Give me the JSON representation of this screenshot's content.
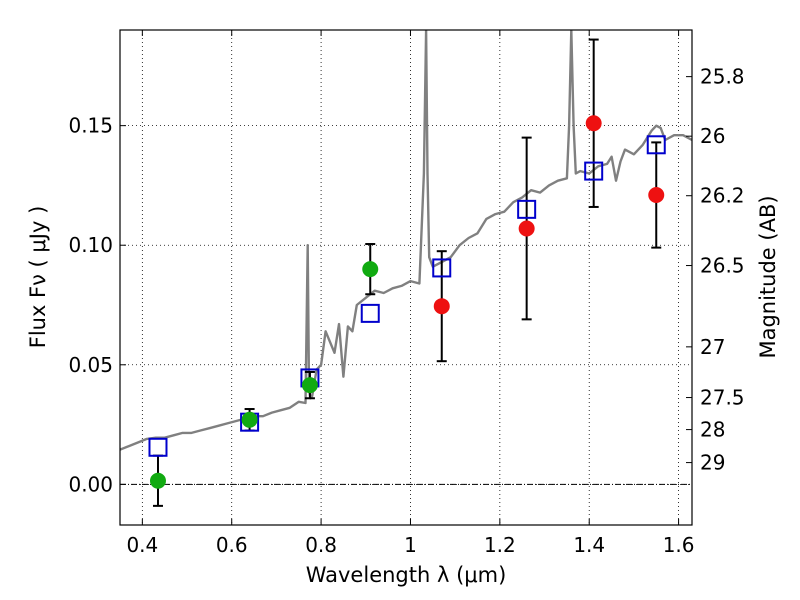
{
  "chart_data": {
    "type": "scatter",
    "title": "",
    "xlabel": "Wavelength  λ (μm)",
    "ylabel": "Flux  Fν  ( μJy )",
    "ylabel_right": "Magnitude (AB)",
    "xlim": [
      0.35,
      1.63
    ],
    "ylim": [
      -0.017,
      0.19
    ],
    "grid": true,
    "x_ticks": [
      0.4,
      0.6,
      0.8,
      1.0,
      1.2,
      1.4,
      1.6
    ],
    "x_tick_labels": [
      "0.4",
      "0.6",
      "0.8",
      "1",
      "1.2",
      "1.4",
      "1.6"
    ],
    "y_ticks": [
      0.0,
      0.05,
      0.1,
      0.15
    ],
    "y_tick_labels": [
      "0.00",
      "0.05",
      "0.10",
      "0.15"
    ],
    "mag_ticks": [
      {
        "label": "25.8",
        "flux": 0.1705
      },
      {
        "label": "26",
        "flux": 0.1456
      },
      {
        "label": "26.2",
        "flux": 0.1207
      },
      {
        "label": "26.5",
        "flux": 0.0915
      },
      {
        "label": "27",
        "flux": 0.0575
      },
      {
        "label": "27.5",
        "flux": 0.0363
      },
      {
        "label": "28",
        "flux": 0.0229
      },
      {
        "label": "29",
        "flux": 0.0091
      }
    ],
    "series": [
      {
        "name": "model spectrum",
        "type": "line",
        "color": "#808080",
        "x": [
          0.35,
          0.37,
          0.39,
          0.41,
          0.43,
          0.45,
          0.47,
          0.49,
          0.51,
          0.53,
          0.55,
          0.57,
          0.59,
          0.61,
          0.63,
          0.65,
          0.67,
          0.69,
          0.71,
          0.73,
          0.75,
          0.765,
          0.77,
          0.773,
          0.776,
          0.78,
          0.79,
          0.8,
          0.81,
          0.83,
          0.84,
          0.85,
          0.86,
          0.87,
          0.88,
          0.9,
          0.92,
          0.94,
          0.96,
          0.98,
          1.0,
          1.02,
          1.03,
          1.035,
          1.038,
          1.042,
          1.05,
          1.07,
          1.09,
          1.11,
          1.13,
          1.15,
          1.17,
          1.19,
          1.21,
          1.23,
          1.25,
          1.27,
          1.29,
          1.31,
          1.33,
          1.35,
          1.355,
          1.36,
          1.365,
          1.37,
          1.38,
          1.4,
          1.42,
          1.44,
          1.45,
          1.46,
          1.47,
          1.48,
          1.5,
          1.52,
          1.54,
          1.55,
          1.56,
          1.57,
          1.59,
          1.61,
          1.63
        ],
        "y": [
          0.0145,
          0.016,
          0.0175,
          0.019,
          0.0195,
          0.0195,
          0.0205,
          0.0215,
          0.0215,
          0.0225,
          0.0235,
          0.0245,
          0.0255,
          0.0265,
          0.0275,
          0.0285,
          0.0285,
          0.03,
          0.031,
          0.032,
          0.0345,
          0.034,
          0.1,
          0.04,
          0.036,
          0.037,
          0.048,
          0.05,
          0.064,
          0.055,
          0.067,
          0.045,
          0.066,
          0.064,
          0.075,
          0.078,
          0.081,
          0.08,
          0.082,
          0.083,
          0.085,
          0.084,
          0.13,
          0.19,
          0.13,
          0.095,
          0.091,
          0.093,
          0.095,
          0.1,
          0.103,
          0.105,
          0.111,
          0.113,
          0.114,
          0.118,
          0.12,
          0.123,
          0.122,
          0.125,
          0.127,
          0.128,
          0.15,
          0.19,
          0.15,
          0.13,
          0.131,
          0.13,
          0.133,
          0.134,
          0.137,
          0.127,
          0.135,
          0.14,
          0.138,
          0.142,
          0.148,
          0.15,
          0.149,
          0.144,
          0.146,
          0.146,
          0.144
        ]
      },
      {
        "name": "model photometry",
        "type": "square",
        "color": "#0000cc",
        "x": [
          0.435,
          0.64,
          0.775,
          0.91,
          1.07,
          1.26,
          1.41,
          1.55
        ],
        "y": [
          0.0155,
          0.026,
          0.0445,
          0.0715,
          0.0905,
          0.115,
          0.131,
          0.142
        ]
      },
      {
        "name": "detections (green)",
        "type": "circle",
        "color": "#11aa11",
        "x": [
          0.435,
          0.64,
          0.775,
          0.91
        ],
        "y": [
          0.0015,
          0.027,
          0.0415,
          0.09
        ],
        "yerr": [
          0.0105,
          0.0045,
          0.0055,
          0.0105
        ]
      },
      {
        "name": "detections (red)",
        "type": "circle",
        "color": "#ee1111",
        "x": [
          1.07,
          1.26,
          1.41,
          1.55
        ],
        "y": [
          0.0745,
          0.107,
          0.151,
          0.121
        ],
        "yerr": [
          0.023,
          0.038,
          0.035,
          0.022
        ]
      }
    ]
  }
}
